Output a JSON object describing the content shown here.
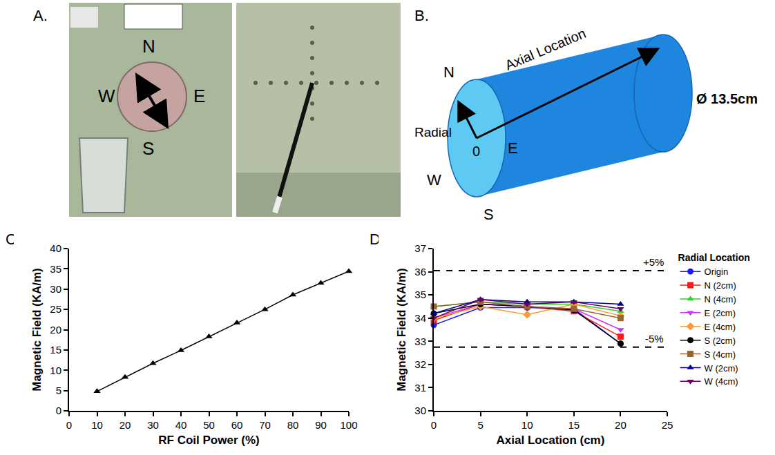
{
  "panel_a": {
    "panel": "A.",
    "labels": {
      "north": "N",
      "west": "W",
      "east": "E",
      "south": "S"
    }
  },
  "panel_b": {
    "panel": "B.",
    "labels": {
      "axial": "Axial Location",
      "diameter": "Ø 13.5cm",
      "radial": "Radial",
      "origin": "0",
      "north": "N",
      "east": "E",
      "west": "W",
      "south": "S"
    }
  },
  "chart_data": [
    {
      "panel": "C.",
      "type": "line",
      "x_label": "RF Coil Power (%)",
      "y_label": "Magnetic Field (KA/m)",
      "x": [
        10,
        20,
        30,
        40,
        50,
        60,
        70,
        80,
        90,
        100
      ],
      "values": [
        4.8,
        8.3,
        11.7,
        14.9,
        18.3,
        21.7,
        25.0,
        28.6,
        31.5,
        34.4
      ],
      "color": "#000000",
      "marker": "triangle-up",
      "xlim": [
        0,
        100
      ],
      "xticks": [
        0,
        10,
        20,
        30,
        40,
        50,
        60,
        70,
        80,
        90,
        100
      ],
      "ylim": [
        0,
        40
      ],
      "yticks": [
        0,
        5,
        10,
        15,
        20,
        25,
        30,
        35,
        40
      ],
      "grid": false
    },
    {
      "panel": "D.",
      "type": "line",
      "x_label": "Axial Location (cm)",
      "y_label": "Magnetic Field (KA/m)",
      "legend_title": "Radial Location",
      "legend": "right",
      "x": [
        0,
        5,
        10,
        15,
        20
      ],
      "series": [
        {
          "name": "Origin",
          "color": "#1a1aff",
          "marker": "circle",
          "values": [
            33.7,
            34.45,
            34.45,
            34.4,
            32.9
          ]
        },
        {
          "name": "N (2cm)",
          "color": "#ff1a1a",
          "marker": "square",
          "values": [
            33.9,
            34.6,
            34.5,
            34.3,
            33.2
          ]
        },
        {
          "name": "N (4cm)",
          "color": "#33cc33",
          "marker": "triangle-up",
          "values": [
            34.5,
            34.7,
            34.6,
            34.6,
            34.3
          ]
        },
        {
          "name": "E (2cm)",
          "color": "#cc33ff",
          "marker": "triangle-down",
          "values": [
            34.0,
            34.6,
            34.5,
            34.4,
            33.5
          ]
        },
        {
          "name": "E (4cm)",
          "color": "#ff9933",
          "marker": "diamond",
          "values": [
            34.0,
            34.5,
            34.15,
            34.6,
            34.1
          ]
        },
        {
          "name": "S (2cm)",
          "color": "#000000",
          "marker": "circle",
          "values": [
            34.2,
            34.6,
            34.5,
            34.35,
            32.9
          ]
        },
        {
          "name": "S (4cm)",
          "color": "#996633",
          "marker": "square",
          "values": [
            34.5,
            34.7,
            34.5,
            34.4,
            34.0
          ]
        },
        {
          "name": "W (2cm)",
          "color": "#000099",
          "marker": "triangle-up",
          "values": [
            34.2,
            34.8,
            34.7,
            34.7,
            34.6
          ]
        },
        {
          "name": "W (4cm)",
          "color": "#660066",
          "marker": "triangle-down",
          "values": [
            34.0,
            34.8,
            34.6,
            34.7,
            34.4
          ]
        }
      ],
      "annotations": [
        {
          "y": 36.05,
          "text": "+5%",
          "line_style": "dash"
        },
        {
          "y": 32.75,
          "text": "-5%",
          "line_style": "dash"
        }
      ],
      "xlim": [
        0,
        25
      ],
      "xticks": [
        0,
        5,
        10,
        15,
        20,
        25
      ],
      "ylim": [
        30,
        37
      ],
      "yticks": [
        30,
        31,
        32,
        33,
        34,
        35,
        36,
        37
      ],
      "grid": false
    }
  ]
}
